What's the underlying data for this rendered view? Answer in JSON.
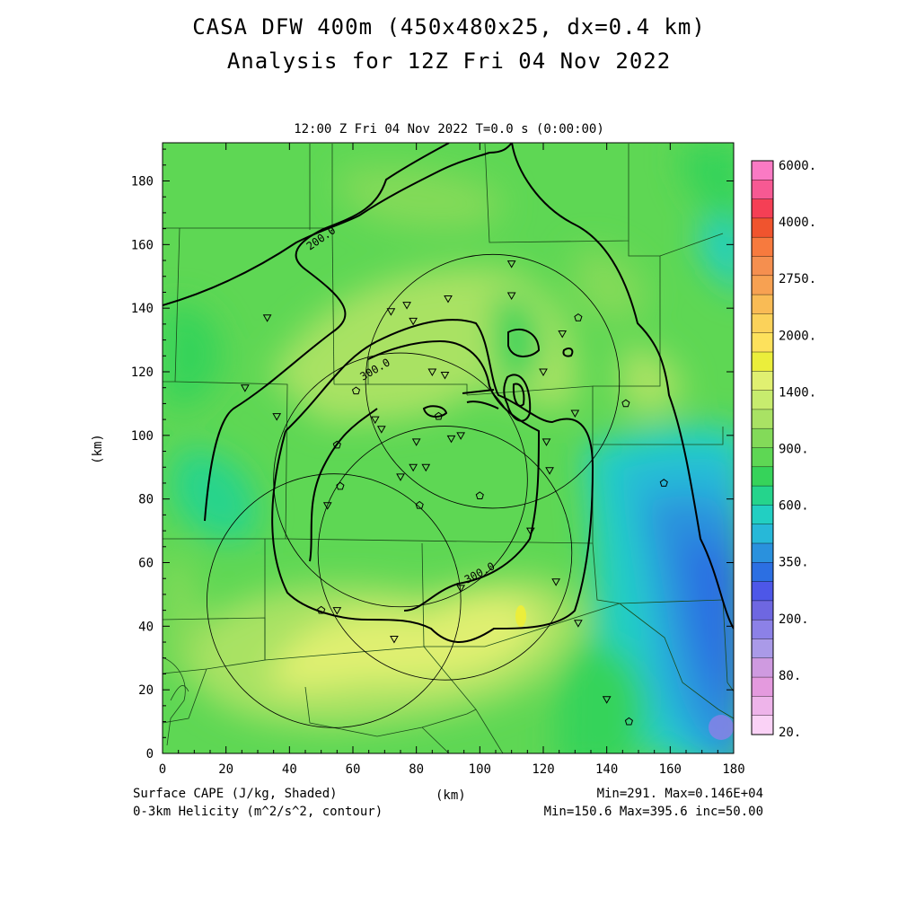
{
  "titles": {
    "line1": "CASA DFW 400m (450x480x25, dx=0.4 km)",
    "line2": "Analysis for 12Z Fri 04 Nov 2022"
  },
  "subtitle": "12:00 Z Fri 04 Nov 2022   T=0.0 s (0:00:00)",
  "footer": {
    "field1": "Surface CAPE (J/kg, Shaded)",
    "field2": "0-3km Helicity (m^2/s^2, contour)",
    "xunit": "(km)",
    "stats1": "Min=291. Max=0.146E+04",
    "stats2": "Min=150.6 Max=395.6 inc=50.00"
  },
  "chart_data": {
    "type": "heatmap",
    "ylabel": "(km)",
    "xlim": [
      0,
      180
    ],
    "ylim": [
      0,
      192
    ],
    "x_ticks": [
      "0",
      "20",
      "40",
      "60",
      "80",
      "100",
      "120",
      "140",
      "160",
      "180"
    ],
    "y_ticks": [
      "0",
      "20",
      "40",
      "60",
      "80",
      "100",
      "120",
      "140",
      "160",
      "180"
    ],
    "colorbar": {
      "labels": [
        "6000.",
        "4000.",
        "2750.",
        "2000.",
        "1400.",
        "900.",
        "600.",
        "350.",
        "200.",
        "80.",
        "20."
      ],
      "colors": [
        "#fa7ac4",
        "#f75993",
        "#f53f55",
        "#f0542e",
        "#f77a3e",
        "#f58f4f",
        "#f7a152",
        "#f9bb55",
        "#fbd25a",
        "#fde15c",
        "#ebee3b",
        "#e0f071",
        "#c7ec6e",
        "#a9e264",
        "#83da59",
        "#5ed754",
        "#36d35a",
        "#25d48c",
        "#22cfc2",
        "#27b8d8",
        "#2a91dd",
        "#2c6fe2",
        "#4d57e8",
        "#6e67e1",
        "#8c81e7",
        "#aa9ae8",
        "#cf9ae0",
        "#e49ade",
        "#eeb4ea",
        "#fad2f6"
      ]
    },
    "helicity_contour_labels": [
      "200.0",
      "300.0",
      "300.0"
    ],
    "radar_sites": [
      {
        "x": 54,
        "y": 48
      },
      {
        "x": 89,
        "y": 63
      },
      {
        "x": 75,
        "y": 86
      },
      {
        "x": 104,
        "y": 117
      }
    ],
    "radar_range_km": 40,
    "stations_triangle": [
      [
        33,
        137
      ],
      [
        26,
        115
      ],
      [
        36,
        106
      ],
      [
        72,
        139
      ],
      [
        77,
        141
      ],
      [
        79,
        136
      ],
      [
        90,
        143
      ],
      [
        110,
        144
      ],
      [
        110,
        154
      ],
      [
        85,
        120
      ],
      [
        89,
        119
      ],
      [
        67,
        105
      ],
      [
        69,
        102
      ],
      [
        80,
        98
      ],
      [
        79,
        90
      ],
      [
        83,
        90
      ],
      [
        75,
        87
      ],
      [
        91,
        99
      ],
      [
        94,
        100
      ],
      [
        121,
        98
      ],
      [
        122,
        89
      ],
      [
        116,
        70
      ],
      [
        124,
        54
      ],
      [
        131,
        41
      ],
      [
        52,
        78
      ],
      [
        55,
        45
      ],
      [
        73,
        36
      ],
      [
        94,
        52
      ],
      [
        140,
        17
      ],
      [
        126,
        132
      ],
      [
        130,
        107
      ],
      [
        120,
        120
      ]
    ],
    "stations_pentagon": [
      [
        61,
        114
      ],
      [
        55,
        97
      ],
      [
        56,
        84
      ],
      [
        81,
        78
      ],
      [
        100,
        81
      ],
      [
        50,
        45
      ],
      [
        87,
        106
      ],
      [
        131,
        137
      ],
      [
        146,
        110
      ],
      [
        158,
        85
      ],
      [
        147,
        10
      ]
    ]
  }
}
